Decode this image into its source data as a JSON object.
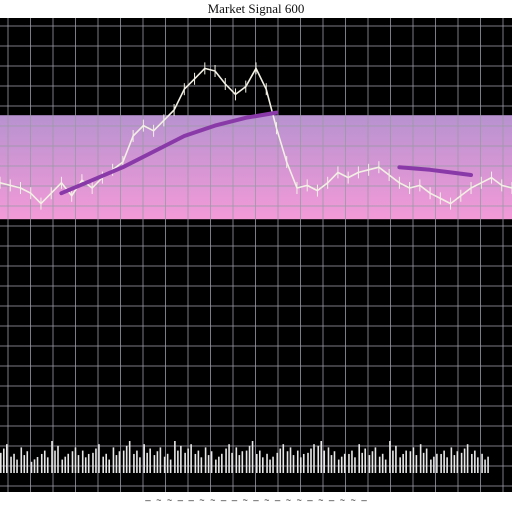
{
  "title": "Market Signal 600",
  "footer_text": "— ~ ~ — — ~ ~ — — ~ — ~ — ~ ~ — ~ — ~ ~ —",
  "colors": {
    "background": "#000000",
    "grid": "#9a9aa6",
    "band_top": "#b892d0",
    "band_bottom": "#f39ad8",
    "price_line": "#f2f0e4",
    "trend_line": "#8a3aa8",
    "volume": "#e8e8e8"
  },
  "chart_data": {
    "type": "line",
    "title": "Market Signal 600",
    "xlabel": "",
    "ylabel": "",
    "xlim": [
      0,
      100
    ],
    "ylim": [
      0,
      100
    ],
    "grid": true,
    "band": [
      38,
      78
    ],
    "series": [
      {
        "role": "price",
        "x": [
          0,
          2,
          4,
          6,
          8,
          10,
          12,
          14,
          16,
          18,
          20,
          22,
          24,
          26,
          28,
          30,
          32,
          34,
          36,
          38,
          40,
          42,
          44,
          46,
          48,
          50,
          52,
          54,
          56,
          58,
          60,
          62,
          64,
          66,
          68,
          70,
          72,
          74,
          76,
          78,
          80,
          82,
          84,
          86,
          88,
          90,
          92,
          94,
          96,
          98,
          100
        ],
        "y": [
          52,
          51,
          50,
          48,
          44,
          48,
          52,
          47,
          53,
          50,
          54,
          57,
          60,
          70,
          74,
          72,
          76,
          80,
          88,
          92,
          96,
          95,
          90,
          86,
          89,
          96,
          88,
          73,
          60,
          50,
          51,
          49,
          52,
          56,
          54,
          56,
          57,
          58,
          55,
          52,
          50,
          51,
          48,
          46,
          44,
          47,
          50,
          52,
          54,
          51,
          50
        ]
      },
      {
        "role": "moving-average",
        "x": [
          12,
          18,
          24,
          30,
          36,
          42,
          48,
          54,
          60,
          66,
          72,
          78,
          84,
          88,
          92
        ],
        "y": [
          48,
          53,
          58,
          64,
          70,
          74,
          77,
          79,
          null,
          null,
          null,
          58,
          57,
          56,
          55
        ]
      }
    ],
    "volume": {
      "x": [
        0,
        2,
        4,
        6,
        8,
        10,
        12,
        14,
        16,
        18,
        20,
        22,
        24,
        26,
        28,
        30,
        32,
        34,
        36,
        38,
        40,
        42,
        44,
        46,
        48,
        50,
        52,
        54,
        56,
        58,
        60,
        62,
        64,
        66,
        68,
        70,
        72,
        74,
        76,
        78,
        80,
        82,
        84,
        86,
        88,
        90,
        92,
        94
      ],
      "values": [
        9,
        6,
        8,
        5,
        7,
        10,
        6,
        8,
        7,
        9,
        6,
        8,
        10,
        7,
        9,
        8,
        6,
        10,
        9,
        7,
        8,
        6,
        9,
        8,
        10,
        7,
        6,
        9,
        8,
        7,
        9,
        10,
        8,
        6,
        7,
        9,
        8,
        6,
        10,
        7,
        8,
        9,
        6,
        7,
        8,
        9,
        7,
        6
      ]
    }
  }
}
